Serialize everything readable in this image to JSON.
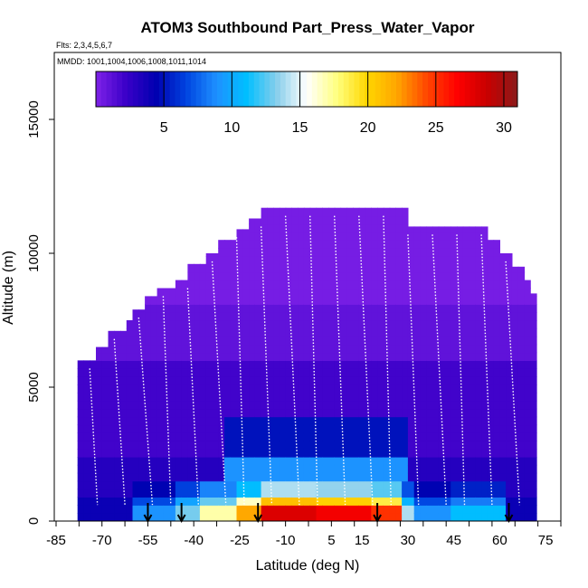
{
  "header": {
    "title": "ATOM3 Southbound Part_Press_Water_Vapor",
    "flights": "Flts: 2,3,4,5,6,7",
    "mmdd": "MMDD: 1001,1004,1006,1008,1011,1014"
  },
  "colors": {
    "palette": [
      "#7f22e8",
      "#3a00c8",
      "#0000b0",
      "#0044e0",
      "#1e90ff",
      "#00bfff",
      "#87ceeb",
      "#ffffff",
      "#ffff80",
      "#ffd700",
      "#ffa500",
      "#ff4500",
      "#ff0000",
      "#c80000",
      "#8b1a1a"
    ],
    "track": "#ffffff",
    "arrow": "#000000"
  },
  "chart_data": {
    "type": "heatmap",
    "title": "ATOM3 Southbound Part_Press_Water_Vapor",
    "xlabel": "Latitude (deg N)",
    "ylabel": "Altitude (m)",
    "xlim": [
      -85,
      80
    ],
    "ylim": [
      0,
      17500
    ],
    "x_ticks": [
      -85,
      -70,
      -55,
      -40,
      -25,
      -10,
      5,
      15,
      30,
      45,
      60,
      75
    ],
    "y_ticks": [
      0,
      5000,
      10000,
      15000
    ],
    "colorbar": {
      "min": 0,
      "max": 31,
      "ticks": [
        5,
        10,
        15,
        20,
        25,
        30
      ]
    },
    "top_altitude_profile": {
      "lat": [
        -77,
        -73,
        -69,
        -63,
        -60,
        -56,
        -52,
        -47,
        -42,
        -37,
        -32,
        -27,
        -22,
        -18,
        5,
        10,
        15,
        20,
        25,
        29,
        35,
        40,
        45,
        50,
        55,
        60,
        64,
        67,
        70
      ],
      "alt": [
        6000,
        6500,
        7100,
        7500,
        7900,
        8400,
        8700,
        9000,
        9600,
        10000,
        10500,
        10900,
        11300,
        11700,
        11700,
        11700,
        11700,
        11700,
        11700,
        11000,
        11000,
        11000,
        11000,
        11000,
        10500,
        10000,
        9500,
        9000,
        8500
      ]
    },
    "surface_columns": [
      {
        "lat_range": [
          -60,
          -45
        ],
        "value": 9
      },
      {
        "lat_range": [
          -45,
          -38
        ],
        "value": 13
      },
      {
        "lat_range": [
          -38,
          -25
        ],
        "value": 17
      },
      {
        "lat_range": [
          -25,
          -18
        ],
        "value": 22
      },
      {
        "lat_range": [
          -18,
          0
        ],
        "value": 28
      },
      {
        "lat_range": [
          0,
          18
        ],
        "value": 27
      },
      {
        "lat_range": [
          18,
          28
        ],
        "value": 25
      },
      {
        "lat_range": [
          28,
          32
        ],
        "value": 14
      },
      {
        "lat_range": [
          32,
          45
        ],
        "value": 9
      },
      {
        "lat_range": [
          45,
          62
        ],
        "value": 11
      }
    ],
    "arrow_latitudes": [
      -55,
      -44,
      -19,
      20,
      63
    ]
  }
}
